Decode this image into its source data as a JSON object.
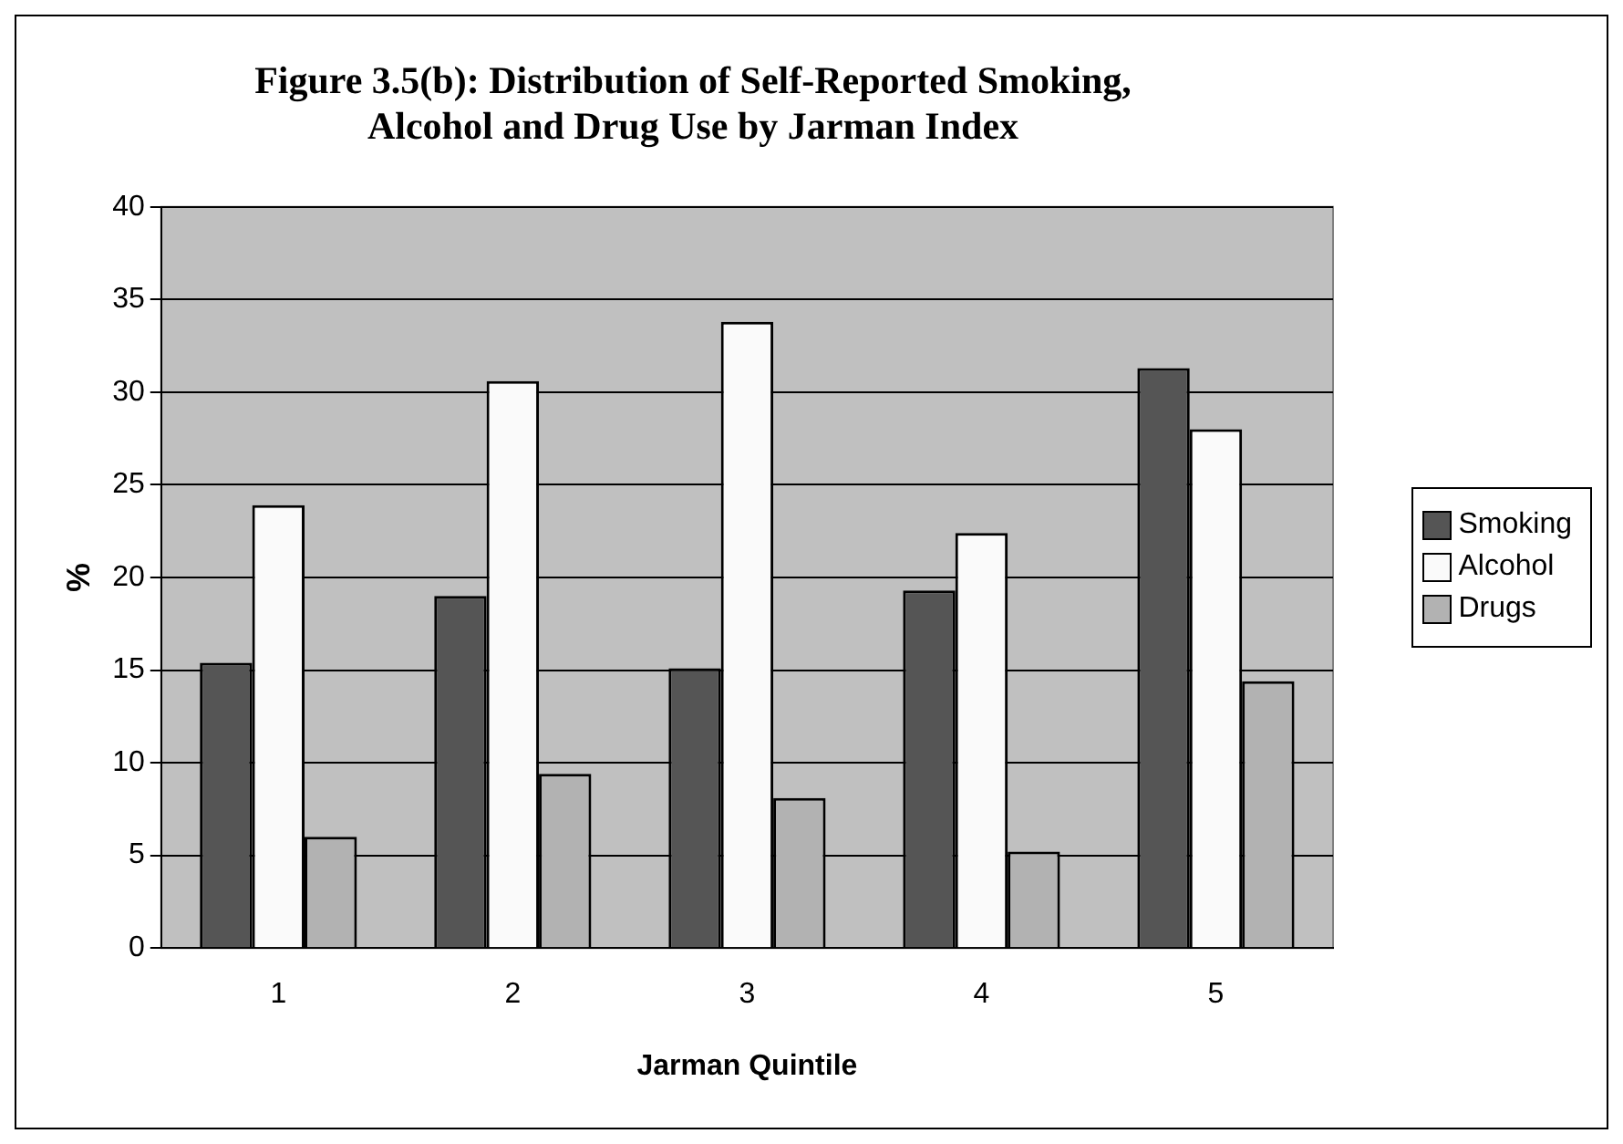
{
  "chart_data": {
    "type": "bar",
    "title": "Figure 3.5(b): Distribution of Self-Reported Smoking, Alcohol and Drug Use by Jarman Index",
    "xlabel": "Jarman Quintile",
    "ylabel": "%",
    "categories": [
      "1",
      "2",
      "3",
      "4",
      "5"
    ],
    "series": [
      {
        "name": "Smoking",
        "color": "#555555",
        "values": [
          15.4,
          19.0,
          15.1,
          19.3,
          31.3
        ]
      },
      {
        "name": "Alcohol",
        "color": "#fafafa",
        "values": [
          23.9,
          30.6,
          33.8,
          22.4,
          28.0
        ]
      },
      {
        "name": "Drugs",
        "color": "#b2b2b2",
        "values": [
          6.0,
          9.4,
          8.1,
          5.2,
          14.4
        ]
      }
    ],
    "ylim": [
      0,
      40
    ],
    "yticks": [
      0,
      5,
      10,
      15,
      20,
      25,
      30,
      35,
      40
    ],
    "grid": "y",
    "legend": "right"
  }
}
